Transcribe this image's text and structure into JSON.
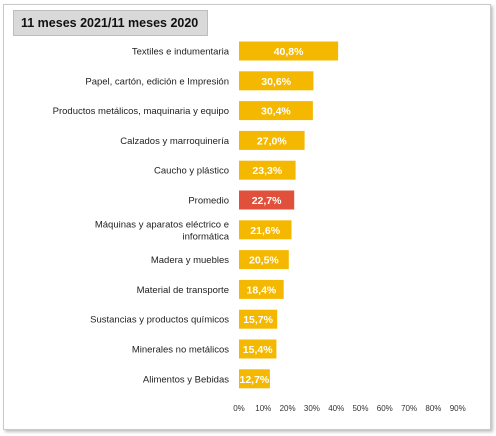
{
  "title": "11 meses 2021/11 meses 2020",
  "colors": {
    "bar": "#F5B800",
    "highlight": "#E0503A",
    "background": "#FFFFFF",
    "title_bg": "#D9D9D9"
  },
  "chart_data": {
    "type": "bar",
    "orientation": "horizontal",
    "title": "11 meses 2021/11 meses 2020",
    "categories": [
      "Textiles e indumentaria",
      "Papel, cartón, edición e Impresión",
      "Productos metálicos, maquinaria y equipo",
      "Calzados y marroquinería",
      "Caucho y plástico",
      "Promedio",
      "Máquinas y aparatos eléctrico e informática",
      "Madera y muebles",
      "Material de transporte",
      "Sustancias y productos químicos",
      "Minerales no metálicos",
      "Alimentos y Bebidas"
    ],
    "values": [
      40.8,
      30.6,
      30.4,
      27.0,
      23.3,
      22.7,
      21.6,
      20.5,
      18.4,
      15.7,
      15.4,
      12.7
    ],
    "value_labels": [
      "40,8%",
      "30,6%",
      "30,4%",
      "27,0%",
      "23,3%",
      "22,7%",
      "21,6%",
      "20,5%",
      "18,4%",
      "15,7%",
      "15,4%",
      "12,7%"
    ],
    "highlight_category": "Promedio",
    "xlim": [
      0,
      90
    ],
    "x_ticks": [
      "0%",
      "10%",
      "20%",
      "30%",
      "40%",
      "50%",
      "60%",
      "70%",
      "80%",
      "90%"
    ],
    "grid": false,
    "xlabel": "",
    "ylabel": ""
  }
}
